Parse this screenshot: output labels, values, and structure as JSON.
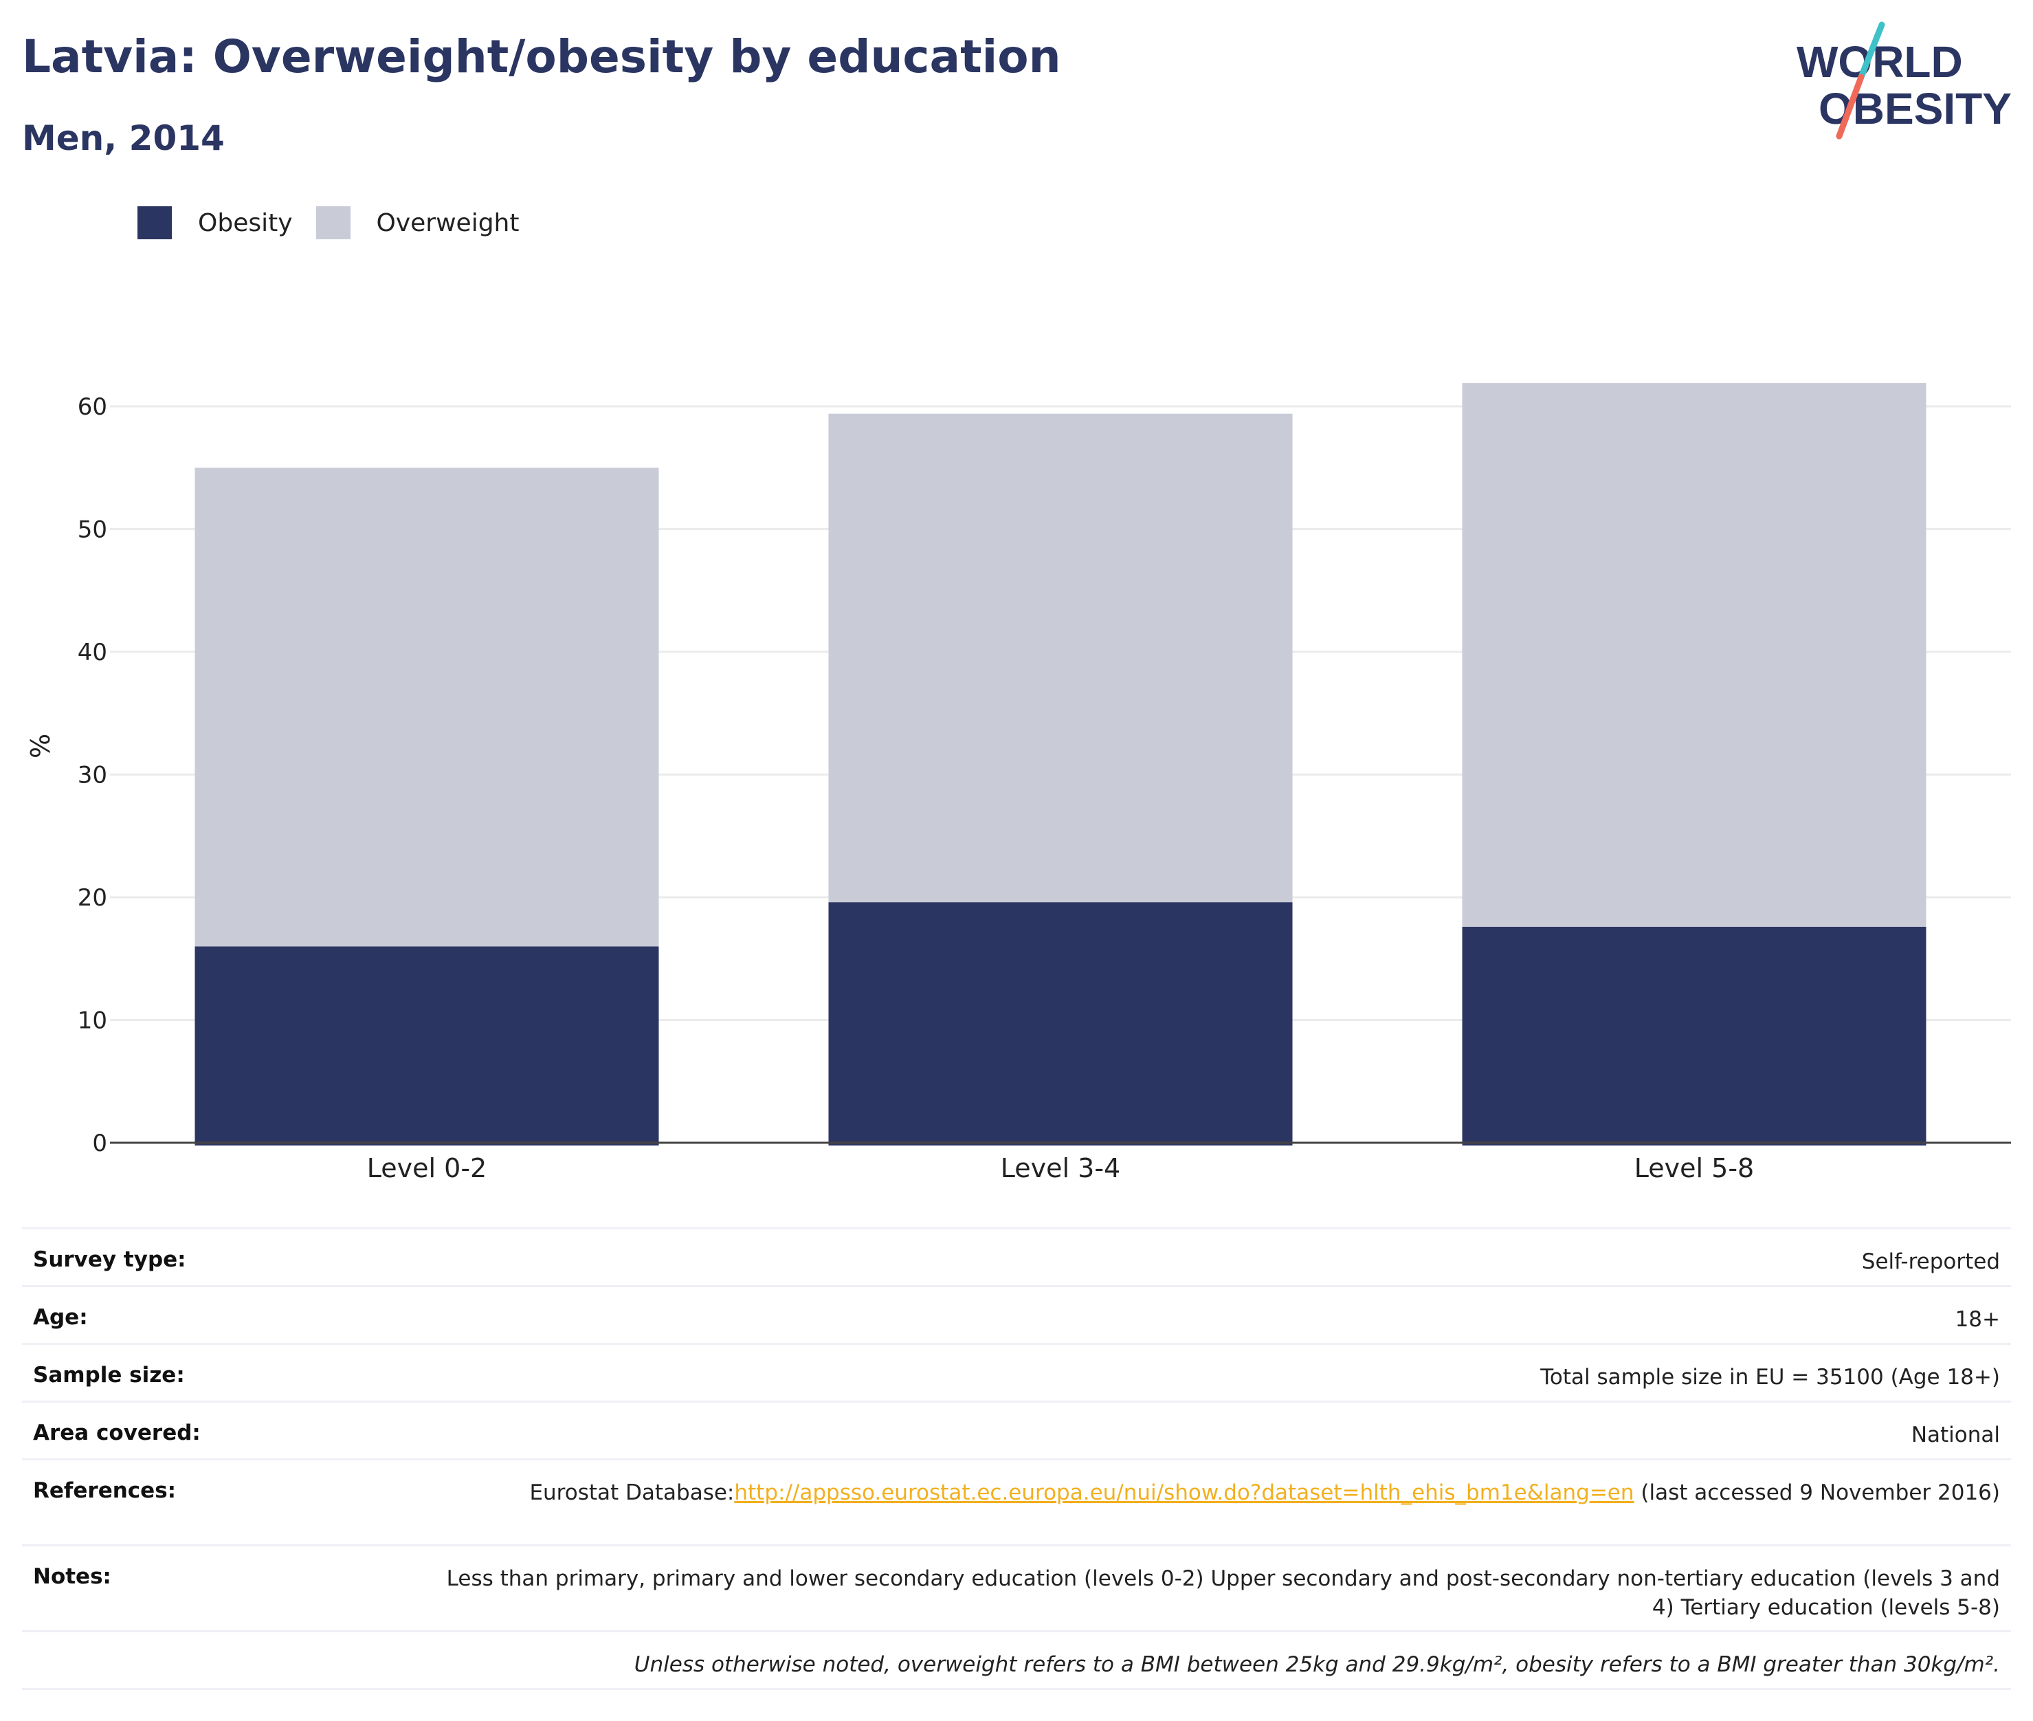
{
  "header": {
    "title": "Latvia: Overweight/obesity by education",
    "subtitle": "Men, 2014"
  },
  "logo": {
    "line1": "WORLD",
    "line2": "OBESITY"
  },
  "colors": {
    "obesity": "#2b3562",
    "overweight": "#c9cbd7",
    "title": "#2b3562",
    "logo_teal": "#3ec1c7",
    "logo_coral": "#ef6a5a",
    "link": "#f2b01e"
  },
  "chart_data": {
    "type": "bar",
    "stacked": true,
    "categories": [
      "Level 0-2",
      "Level 3-4",
      "Level 5-8"
    ],
    "series": [
      {
        "name": "Obesity",
        "values": [
          16.0,
          19.6,
          17.6
        ]
      },
      {
        "name": "Overweight",
        "values": [
          39.0,
          39.8,
          44.3
        ]
      }
    ],
    "ylabel": "%",
    "ylim": [
      0,
      65
    ],
    "yticks": [
      0,
      10,
      20,
      30,
      40,
      50,
      60
    ],
    "grid": true,
    "legend_position": "top-left"
  },
  "info": {
    "survey_type": {
      "label": "Survey type:",
      "value": "Self-reported"
    },
    "age": {
      "label": "Age:",
      "value": "18+"
    },
    "sample_size": {
      "label": "Sample size:",
      "value": "Total sample size in EU = 35100 (Age 18+)"
    },
    "area_covered": {
      "label": "Area covered:",
      "value": "National"
    },
    "references": {
      "label": "References:",
      "prefix": "Eurostat Database:",
      "link": "http://appsso.eurostat.ec.europa.eu/nui/show.do?dataset=hlth_ehis_bm1e&lang=en",
      "suffix": " (last accessed 9 November 2016)"
    },
    "notes": {
      "label": "Notes:",
      "value": "Less than primary, primary and lower secondary education (levels 0-2) Upper secondary and post-secondary non-tertiary education (levels 3 and 4) Tertiary education (levels 5-8)"
    },
    "footnote": "Unless otherwise noted, overweight refers to a BMI between 25kg and 29.9kg/m², obesity refers to a BMI greater than 30kg/m²."
  }
}
